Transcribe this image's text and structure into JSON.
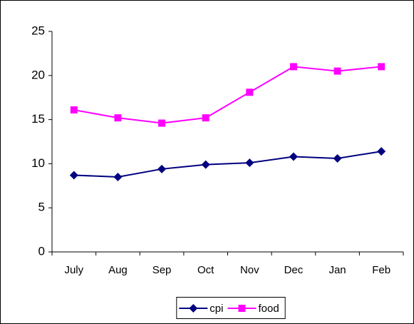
{
  "chart_data": {
    "type": "line",
    "categories": [
      "July",
      "Aug",
      "Sep",
      "Oct",
      "Nov",
      "Dec",
      "Jan",
      "Feb"
    ],
    "series": [
      {
        "name": "cpi",
        "color": "#000080",
        "marker": "diamond",
        "values": [
          8.7,
          8.5,
          9.4,
          9.9,
          10.1,
          10.8,
          10.6,
          11.4
        ]
      },
      {
        "name": "food",
        "color": "#ff00ff",
        "marker": "square",
        "values": [
          16.1,
          15.2,
          14.6,
          15.2,
          18.1,
          21.0,
          20.5,
          21.0
        ]
      }
    ],
    "ylim": [
      0,
      25
    ],
    "yticks": [
      0,
      5,
      10,
      15,
      20,
      25
    ],
    "grid": false,
    "legend": "bottom"
  }
}
